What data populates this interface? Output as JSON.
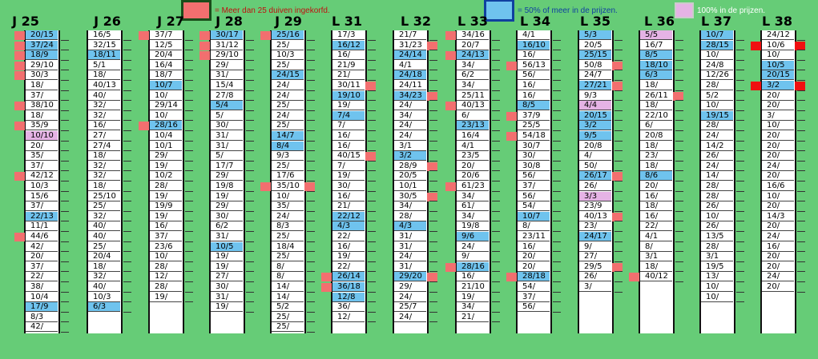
{
  "legend": {
    "red_text": "= Meer dan 25 duiven ingekorfd.",
    "blue_text": "= 50% of meer in de prijzen.",
    "pink_text": "100% in de prijzen.",
    "colors": {
      "red": "#f26f6f",
      "blue": "#6fc3ee",
      "pink": "#e5b3e5",
      "background": "#66cc77"
    }
  },
  "columns": [
    {
      "header": "J 25",
      "rows": [
        {
          "v": "20/15",
          "c": "blue",
          "r": "left"
        },
        {
          "v": "37/24",
          "c": "blue",
          "r": "left"
        },
        {
          "v": "18/9",
          "c": "blue",
          "r": "left"
        },
        {
          "v": "29/10",
          "r": "left"
        },
        {
          "v": "30/3",
          "r": "left"
        },
        {
          "v": "18/"
        },
        {
          "v": "37/"
        },
        {
          "v": "38/10",
          "r": "left"
        },
        {
          "v": "18/"
        },
        {
          "v": "35/9",
          "r": "left"
        },
        {
          "v": "10/10",
          "c": "pink"
        },
        {
          "v": "20/"
        },
        {
          "v": "35/"
        },
        {
          "v": "37/"
        },
        {
          "v": "42/12",
          "r": "left"
        },
        {
          "v": "10/3"
        },
        {
          "v": "15/6"
        },
        {
          "v": "37/"
        },
        {
          "v": "22/13",
          "c": "blue"
        },
        {
          "v": "11/1"
        },
        {
          "v": "44/6",
          "r": "left"
        },
        {
          "v": "42/"
        },
        {
          "v": "20/"
        },
        {
          "v": "37/"
        },
        {
          "v": "22/"
        },
        {
          "v": "38/"
        },
        {
          "v": "10/4"
        },
        {
          "v": "17/9",
          "c": "blue"
        },
        {
          "v": "8/3"
        },
        {
          "v": "42/"
        }
      ]
    },
    {
      "header": "J 26",
      "rows": [
        {
          "v": "16/5"
        },
        {
          "v": "32/15"
        },
        {
          "v": "18/11",
          "c": "blue"
        },
        {
          "v": "5/1"
        },
        {
          "v": "18/"
        },
        {
          "v": "40/13"
        },
        {
          "v": "40/"
        },
        {
          "v": "32/"
        },
        {
          "v": "32/"
        },
        {
          "v": "16/"
        },
        {
          "v": "27/"
        },
        {
          "v": "27/4"
        },
        {
          "v": "18/"
        },
        {
          "v": "32/"
        },
        {
          "v": "32/"
        },
        {
          "v": "18/"
        },
        {
          "v": "25/10"
        },
        {
          "v": "25/"
        },
        {
          "v": "32/"
        },
        {
          "v": "40/"
        },
        {
          "v": "40/"
        },
        {
          "v": "25/"
        },
        {
          "v": "20/4"
        },
        {
          "v": "18/"
        },
        {
          "v": "32/"
        },
        {
          "v": "40/"
        },
        {
          "v": "10/3"
        },
        {
          "v": "6/3",
          "c": "blue"
        }
      ]
    },
    {
      "header": "J 27",
      "rows": [
        {
          "v": "37/7",
          "r": "left"
        },
        {
          "v": "12/5"
        },
        {
          "v": "20/4"
        },
        {
          "v": "16/4"
        },
        {
          "v": "18/7"
        },
        {
          "v": "10/7",
          "c": "blue"
        },
        {
          "v": "10/"
        },
        {
          "v": "29/14"
        },
        {
          "v": "10/"
        },
        {
          "v": "28/16",
          "c": "blue",
          "r": "left"
        },
        {
          "v": "10/4"
        },
        {
          "v": "10/1"
        },
        {
          "v": "29/"
        },
        {
          "v": "19/"
        },
        {
          "v": "10/2"
        },
        {
          "v": "28/"
        },
        {
          "v": "19/"
        },
        {
          "v": "19/9"
        },
        {
          "v": "19/"
        },
        {
          "v": "16/"
        },
        {
          "v": "37/"
        },
        {
          "v": "23/6"
        },
        {
          "v": "10/"
        },
        {
          "v": "28/"
        },
        {
          "v": "12/"
        },
        {
          "v": "28/"
        },
        {
          "v": "19/"
        }
      ]
    },
    {
      "header": "J 28",
      "rows": [
        {
          "v": "30/17",
          "c": "blue",
          "r": "left"
        },
        {
          "v": "31/12",
          "r": "left"
        },
        {
          "v": "29/10",
          "r": "left"
        },
        {
          "v": "29/"
        },
        {
          "v": "31/"
        },
        {
          "v": "15/4"
        },
        {
          "v": "27/8"
        },
        {
          "v": "5/4",
          "c": "blue"
        },
        {
          "v": "5/"
        },
        {
          "v": "30/"
        },
        {
          "v": "31/"
        },
        {
          "v": "31/"
        },
        {
          "v": "5/"
        },
        {
          "v": "17/7"
        },
        {
          "v": "29/"
        },
        {
          "v": "19/8"
        },
        {
          "v": "19/"
        },
        {
          "v": "29/"
        },
        {
          "v": "30/"
        },
        {
          "v": "6/2"
        },
        {
          "v": "31/"
        },
        {
          "v": "10/5",
          "c": "blue"
        },
        {
          "v": "19/"
        },
        {
          "v": "19/"
        },
        {
          "v": "27/"
        },
        {
          "v": "30/"
        },
        {
          "v": "31/"
        },
        {
          "v": "19/"
        }
      ]
    },
    {
      "header": "J 29",
      "rows": [
        {
          "v": "25/16",
          "c": "blue",
          "r": "left"
        },
        {
          "v": "25/"
        },
        {
          "v": "10/3"
        },
        {
          "v": "25/"
        },
        {
          "v": "24/15",
          "c": "blue"
        },
        {
          "v": "24/"
        },
        {
          "v": "24/"
        },
        {
          "v": "25/"
        },
        {
          "v": "24/"
        },
        {
          "v": "25/"
        },
        {
          "v": "14/7",
          "c": "blue"
        },
        {
          "v": "8/4",
          "c": "blue"
        },
        {
          "v": "9/3"
        },
        {
          "v": "25/"
        },
        {
          "v": "17/6"
        },
        {
          "v": "35/10",
          "r": "both"
        },
        {
          "v": "10/"
        },
        {
          "v": "35/"
        },
        {
          "v": "24/"
        },
        {
          "v": "8/3"
        },
        {
          "v": "25/"
        },
        {
          "v": "18/4"
        },
        {
          "v": "25/"
        },
        {
          "v": "8/"
        },
        {
          "v": "8/"
        },
        {
          "v": "14/"
        },
        {
          "v": "14/"
        },
        {
          "v": "5/2"
        },
        {
          "v": "25/"
        },
        {
          "v": "25/"
        }
      ]
    },
    {
      "header": "L 31",
      "rows": [
        {
          "v": "17/3"
        },
        {
          "v": "16/12",
          "c": "blue"
        },
        {
          "v": "16/"
        },
        {
          "v": "21/9"
        },
        {
          "v": "21/"
        },
        {
          "v": "30/11",
          "r": "right"
        },
        {
          "v": "19/10",
          "c": "blue"
        },
        {
          "v": "19/"
        },
        {
          "v": "7/4",
          "c": "blue"
        },
        {
          "v": "7/"
        },
        {
          "v": "16/"
        },
        {
          "v": "16/"
        },
        {
          "v": "40/15",
          "r": "right"
        },
        {
          "v": "7/"
        },
        {
          "v": "19/"
        },
        {
          "v": "30/"
        },
        {
          "v": "16/"
        },
        {
          "v": "21/"
        },
        {
          "v": "22/12",
          "c": "blue"
        },
        {
          "v": "4/3",
          "c": "blue"
        },
        {
          "v": "22/"
        },
        {
          "v": "16/"
        },
        {
          "v": "19/"
        },
        {
          "v": "22/"
        },
        {
          "v": "26/14",
          "c": "blue",
          "r": "left"
        },
        {
          "v": "36/18",
          "c": "blue",
          "r": "left"
        },
        {
          "v": "12/8",
          "c": "blue"
        },
        {
          "v": "36/"
        },
        {
          "v": "12/"
        }
      ]
    },
    {
      "header": "L 32",
      "rows": [
        {
          "v": "21/7"
        },
        {
          "v": "31/23",
          "r": "right"
        },
        {
          "v": "24/14",
          "c": "blue"
        },
        {
          "v": "4/1"
        },
        {
          "v": "24/18",
          "c": "blue"
        },
        {
          "v": "24/11"
        },
        {
          "v": "34/23",
          "c": "blue",
          "r": "right"
        },
        {
          "v": "24/"
        },
        {
          "v": "34/"
        },
        {
          "v": "24/"
        },
        {
          "v": "24/"
        },
        {
          "v": "3/1"
        },
        {
          "v": "3/2",
          "c": "blue"
        },
        {
          "v": "28/9",
          "r": "right"
        },
        {
          "v": "20/5"
        },
        {
          "v": "10/1"
        },
        {
          "v": "30/5",
          "r": "right"
        },
        {
          "v": "34/"
        },
        {
          "v": "28/"
        },
        {
          "v": "4/3",
          "c": "blue"
        },
        {
          "v": "31/"
        },
        {
          "v": "31/"
        },
        {
          "v": "24/"
        },
        {
          "v": "31/"
        },
        {
          "v": "29/20",
          "c": "blue",
          "r": "right"
        },
        {
          "v": "29/"
        },
        {
          "v": "24/"
        },
        {
          "v": "25/7"
        },
        {
          "v": "24/"
        }
      ]
    },
    {
      "header": "L 33",
      "rows": [
        {
          "v": "34/16",
          "r": "left"
        },
        {
          "v": "20/7"
        },
        {
          "v": "24/13",
          "c": "blue",
          "r": "left"
        },
        {
          "v": "34/"
        },
        {
          "v": "6/2"
        },
        {
          "v": "34/"
        },
        {
          "v": "25/11"
        },
        {
          "v": "40/13",
          "r": "left"
        },
        {
          "v": "6/"
        },
        {
          "v": "23/13",
          "c": "blue"
        },
        {
          "v": "16/4"
        },
        {
          "v": "4/1"
        },
        {
          "v": "23/5"
        },
        {
          "v": "20/"
        },
        {
          "v": "20/6"
        },
        {
          "v": "61/23",
          "r": "left"
        },
        {
          "v": "34/"
        },
        {
          "v": "61/"
        },
        {
          "v": "34/"
        },
        {
          "v": "19/8"
        },
        {
          "v": "9/6",
          "c": "blue"
        },
        {
          "v": "24/"
        },
        {
          "v": "9/"
        },
        {
          "v": "28/16",
          "c": "blue",
          "r": "left"
        },
        {
          "v": "16/"
        },
        {
          "v": "21/10"
        },
        {
          "v": "19/"
        },
        {
          "v": "34/"
        },
        {
          "v": "21/"
        }
      ]
    },
    {
      "header": "L 34",
      "rows": [
        {
          "v": "4/1"
        },
        {
          "v": "16/10",
          "c": "blue"
        },
        {
          "v": "16/"
        },
        {
          "v": "56/13",
          "r": "left"
        },
        {
          "v": "56/"
        },
        {
          "v": "16/"
        },
        {
          "v": "16/"
        },
        {
          "v": "8/5",
          "c": "blue"
        },
        {
          "v": "37/9",
          "r": "left"
        },
        {
          "v": "25/5"
        },
        {
          "v": "54/18",
          "r": "left"
        },
        {
          "v": "30/7"
        },
        {
          "v": "30/"
        },
        {
          "v": "30/8"
        },
        {
          "v": "56/"
        },
        {
          "v": "37/"
        },
        {
          "v": "56/"
        },
        {
          "v": "54/"
        },
        {
          "v": "10/7",
          "c": "blue"
        },
        {
          "v": "8/"
        },
        {
          "v": "23/11"
        },
        {
          "v": "16/"
        },
        {
          "v": "20/"
        },
        {
          "v": "20/"
        },
        {
          "v": "28/18",
          "c": "blue",
          "r": "left"
        },
        {
          "v": "54/"
        },
        {
          "v": "37/"
        },
        {
          "v": "56/"
        }
      ]
    },
    {
      "header": "L 35",
      "rows": [
        {
          "v": "5/3",
          "c": "blue"
        },
        {
          "v": "20/5"
        },
        {
          "v": "25/15",
          "c": "blue"
        },
        {
          "v": "50/8",
          "r": "right"
        },
        {
          "v": "24/7"
        },
        {
          "v": "27/21",
          "c": "blue",
          "r": "right"
        },
        {
          "v": "9/3"
        },
        {
          "v": "4/4",
          "c": "pink"
        },
        {
          "v": "20/15",
          "c": "blue"
        },
        {
          "v": "3/2",
          "c": "blue"
        },
        {
          "v": "9/5",
          "c": "blue"
        },
        {
          "v": "20/8"
        },
        {
          "v": "4/"
        },
        {
          "v": "50/"
        },
        {
          "v": "26/17",
          "c": "blue",
          "r": "right"
        },
        {
          "v": "26/"
        },
        {
          "v": "3/3",
          "c": "pink"
        },
        {
          "v": "23/9"
        },
        {
          "v": "40/13",
          "r": "right"
        },
        {
          "v": "23/"
        },
        {
          "v": "24/17",
          "c": "blue"
        },
        {
          "v": "9/"
        },
        {
          "v": "27/"
        },
        {
          "v": "29/5",
          "r": "right"
        },
        {
          "v": "26/"
        },
        {
          "v": "3/"
        }
      ]
    },
    {
      "header": "L 36",
      "rows": [
        {
          "v": "5/5",
          "c": "pink"
        },
        {
          "v": "16/7"
        },
        {
          "v": "8/5",
          "c": "blue"
        },
        {
          "v": "18/10",
          "c": "blue"
        },
        {
          "v": "6/3",
          "c": "blue"
        },
        {
          "v": "18/"
        },
        {
          "v": "26/11",
          "r": "right"
        },
        {
          "v": "18/"
        },
        {
          "v": "22/10"
        },
        {
          "v": "6/"
        },
        {
          "v": "20/8"
        },
        {
          "v": "18/"
        },
        {
          "v": "23/"
        },
        {
          "v": "18/"
        },
        {
          "v": "8/6",
          "c": "blue"
        },
        {
          "v": "20/"
        },
        {
          "v": "16/"
        },
        {
          "v": "18/"
        },
        {
          "v": "16/"
        },
        {
          "v": "22/"
        },
        {
          "v": "4/1"
        },
        {
          "v": "8/"
        },
        {
          "v": "3/1"
        },
        {
          "v": "18/"
        },
        {
          "v": "40/12",
          "r": "left"
        }
      ]
    },
    {
      "header": "L 37",
      "rows": [
        {
          "v": "10/7",
          "c": "blue"
        },
        {
          "v": "28/15",
          "c": "blue"
        },
        {
          "v": "10/"
        },
        {
          "v": "24/8"
        },
        {
          "v": "12/26"
        },
        {
          "v": "28/"
        },
        {
          "v": "5/2"
        },
        {
          "v": "10/"
        },
        {
          "v": "19/15",
          "c": "blue"
        },
        {
          "v": "28/"
        },
        {
          "v": "24/"
        },
        {
          "v": "14/2"
        },
        {
          "v": "26/"
        },
        {
          "v": "24/"
        },
        {
          "v": "14/"
        },
        {
          "v": "28/"
        },
        {
          "v": "28/"
        },
        {
          "v": "26/"
        },
        {
          "v": "10/"
        },
        {
          "v": "26/"
        },
        {
          "v": "13/5"
        },
        {
          "v": "28/"
        },
        {
          "v": "3/1"
        },
        {
          "v": "19/5"
        },
        {
          "v": "13/"
        },
        {
          "v": "10/"
        },
        {
          "v": "10/"
        }
      ]
    },
    {
      "header": "L 38",
      "rows": [
        {
          "v": "24/12"
        },
        {
          "v": "10/6",
          "r": "both",
          "strong": true
        },
        {
          "v": "10/"
        },
        {
          "v": "10/5",
          "c": "blue"
        },
        {
          "v": "20/15",
          "c": "blue"
        },
        {
          "v": "3/2",
          "c": "blue",
          "r": "both",
          "strong": true
        },
        {
          "v": "20/"
        },
        {
          "v": "20/"
        },
        {
          "v": "3/"
        },
        {
          "v": "10/"
        },
        {
          "v": "20/"
        },
        {
          "v": "20/"
        },
        {
          "v": "20/"
        },
        {
          "v": "24/"
        },
        {
          "v": "20/"
        },
        {
          "v": "16/6"
        },
        {
          "v": "10/"
        },
        {
          "v": "20/"
        },
        {
          "v": "14/3"
        },
        {
          "v": "20/"
        },
        {
          "v": "24/"
        },
        {
          "v": "16/"
        },
        {
          "v": "20/"
        },
        {
          "v": "20/"
        },
        {
          "v": "24/"
        },
        {
          "v": "20/"
        }
      ]
    }
  ]
}
